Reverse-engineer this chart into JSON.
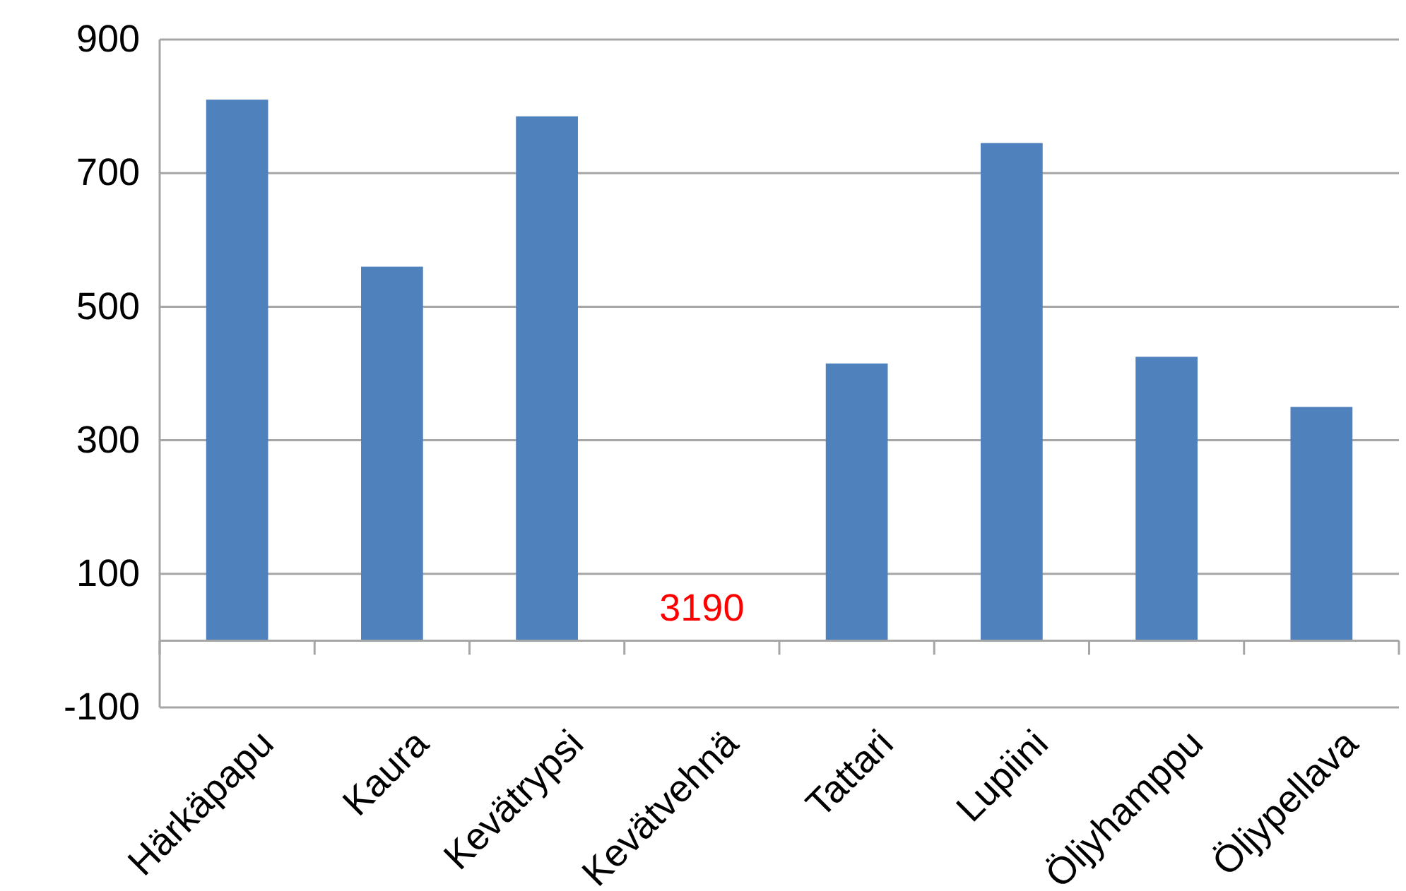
{
  "chart_data": {
    "type": "bar",
    "categories": [
      "Härkäpapu",
      "Kaura",
      "Kevätrypsi",
      "Kevätvehnä",
      "Tattari",
      "Lupiini",
      "Öljyhamppu",
      "Öljypellava"
    ],
    "values": [
      810,
      560,
      785,
      null,
      415,
      745,
      425,
      350
    ],
    "color": "#4f81bd",
    "ylim": [
      -100,
      900
    ],
    "yticks": [
      -100,
      100,
      300,
      500,
      700,
      900
    ],
    "grid": "y",
    "annotations": [
      "3190"
    ]
  }
}
